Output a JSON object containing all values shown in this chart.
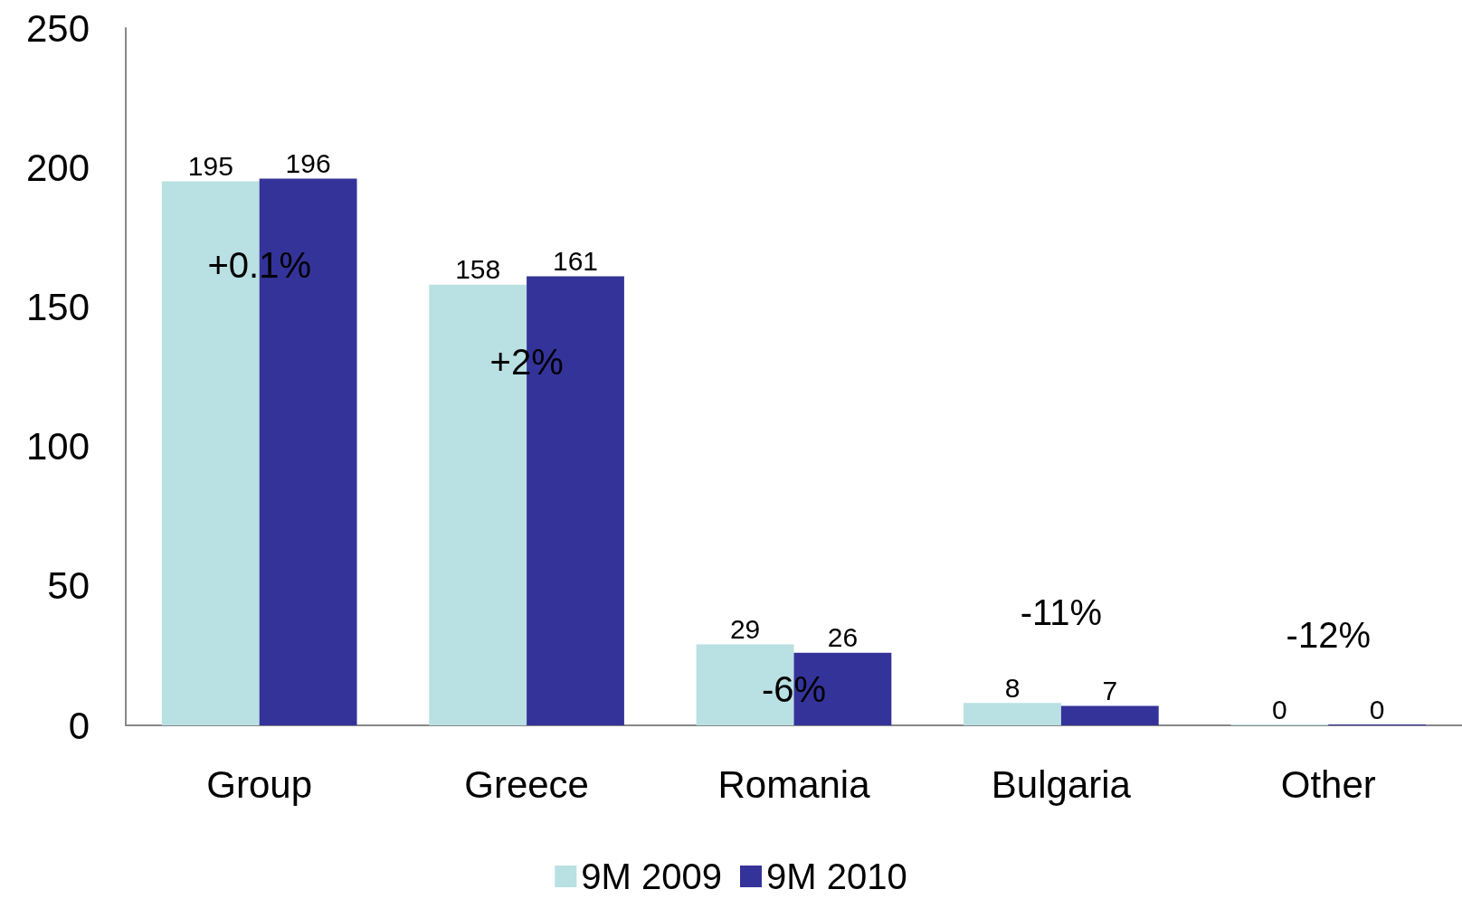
{
  "chart_data": {
    "type": "bar",
    "categories": [
      "Group",
      "Greece",
      "Romania",
      "Bulgaria",
      "Other"
    ],
    "series": [
      {
        "name": "9M 2009",
        "color": "#b9e0e3",
        "values": [
          195,
          158,
          29,
          8,
          0
        ]
      },
      {
        "name": "9M 2010",
        "color": "#343399",
        "values": [
          196,
          161,
          26,
          7,
          0
        ]
      }
    ],
    "ylim": [
      0,
      250
    ],
    "yticks": [
      0,
      50,
      100,
      150,
      200,
      250
    ],
    "grid": false,
    "legend": "bottom",
    "data_labels": true,
    "annotations": [
      "+0.1%",
      "+2%",
      "-6%",
      "-11%",
      "-12%"
    ]
  }
}
